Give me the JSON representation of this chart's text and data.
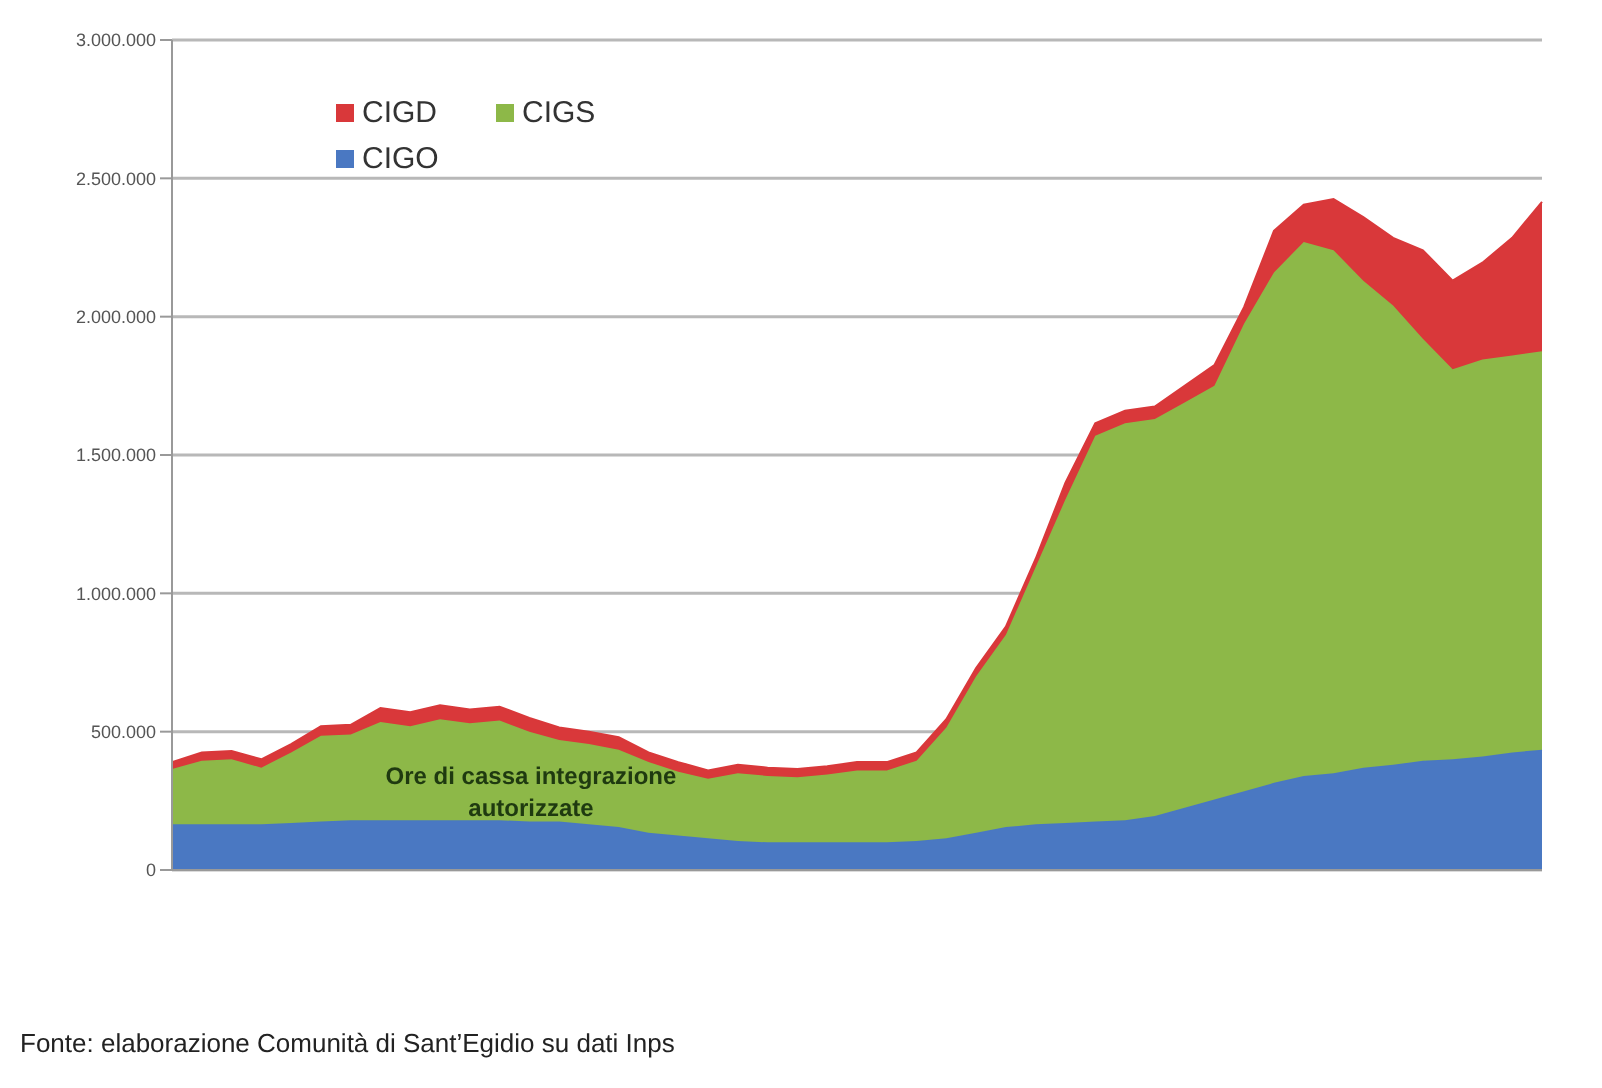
{
  "chart_data": {
    "type": "area",
    "stacked": true,
    "categories": [
      null,
      null,
      null,
      null,
      null,
      null,
      null,
      null,
      null,
      null,
      null,
      null,
      null,
      null,
      null,
      null,
      null,
      null,
      null,
      null,
      null,
      null,
      null,
      null,
      null,
      null,
      null,
      null,
      null,
      null,
      null,
      null,
      null,
      null,
      null,
      null,
      null,
      null,
      null,
      null,
      null,
      null,
      null,
      null,
      null,
      null,
      null
    ],
    "series": [
      {
        "name": "CIGO",
        "color": "#4a78c2",
        "values": [
          165000,
          165000,
          165000,
          165000,
          170000,
          175000,
          180000,
          180000,
          180000,
          180000,
          180000,
          180000,
          175000,
          175000,
          165000,
          155000,
          135000,
          125000,
          115000,
          105000,
          100000,
          100000,
          100000,
          100000,
          100000,
          105000,
          115000,
          135000,
          155000,
          165000,
          170000,
          175000,
          180000,
          195000,
          225000,
          255000,
          285000,
          315000,
          340000,
          350000,
          370000,
          380000,
          395000,
          400000,
          410000,
          425000,
          435000
        ]
      },
      {
        "name": "CIGS",
        "color": "#8db848",
        "values": [
          200000,
          230000,
          235000,
          205000,
          255000,
          310000,
          310000,
          355000,
          340000,
          365000,
          350000,
          360000,
          325000,
          295000,
          290000,
          280000,
          255000,
          230000,
          215000,
          245000,
          240000,
          235000,
          245000,
          260000,
          260000,
          290000,
          400000,
          565000,
          695000,
          930000,
          1170000,
          1395000,
          1435000,
          1435000,
          1465000,
          1495000,
          1690000,
          1845000,
          1930000,
          1890000,
          1760000,
          1660000,
          1525000,
          1410000,
          1435000,
          1435000,
          1440000
        ]
      },
      {
        "name": "CIGD",
        "color": "#d9383a",
        "values": [
          25000,
          30000,
          30000,
          30000,
          30000,
          35000,
          35000,
          50000,
          50000,
          50000,
          50000,
          50000,
          50000,
          45000,
          45000,
          45000,
          35000,
          35000,
          30000,
          30000,
          30000,
          30000,
          30000,
          30000,
          30000,
          30000,
          30000,
          30000,
          30000,
          30000,
          60000,
          45000,
          45000,
          45000,
          60000,
          75000,
          60000,
          150000,
          135000,
          185000,
          230000,
          245000,
          320000,
          320000,
          350000,
          425000,
          540000
        ]
      }
    ],
    "ylim": [
      0,
      3000000
    ],
    "yticks": [
      {
        "value": 0,
        "label": "0"
      },
      {
        "value": 500000,
        "label": "500.000"
      },
      {
        "value": 1000000,
        "label": "1.000.000"
      },
      {
        "value": 1500000,
        "label": "1.500.000"
      },
      {
        "value": 2000000,
        "label": "2.000.000"
      },
      {
        "value": 2500000,
        "label": "2.500.000"
      },
      {
        "value": 3000000,
        "label": "3.000.000"
      }
    ],
    "grid": "y",
    "legend": "top left",
    "annotations": [
      "Ore di cassa integrazione autorizzate",
      "Fonte: elaborazione Comunità di Sant’Egidio su dati Inps"
    ]
  }
}
